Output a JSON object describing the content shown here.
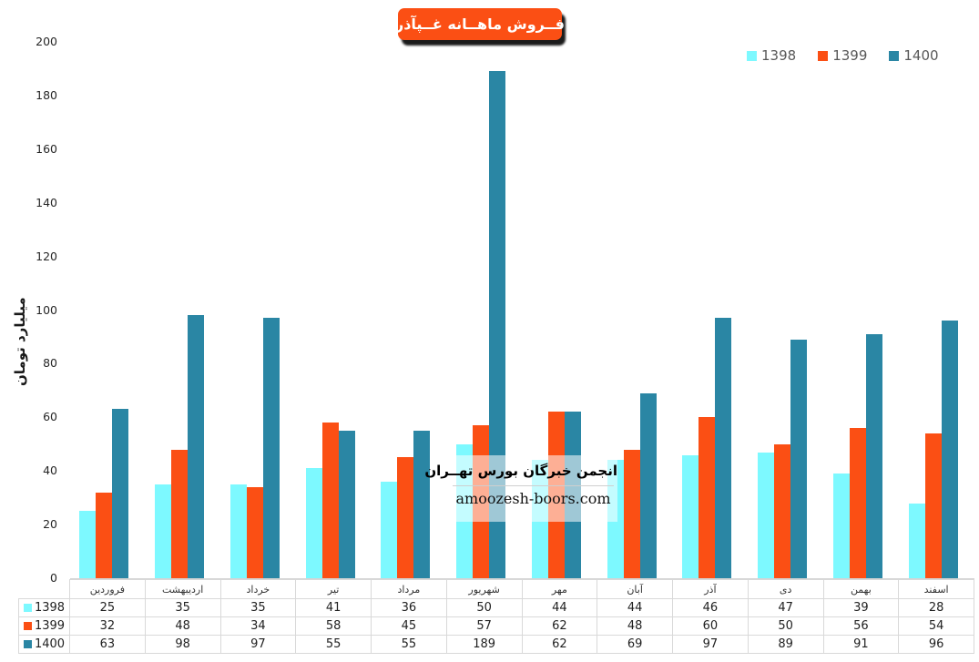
{
  "title": {
    "text": "فــروش ماهــانه غــپآذر",
    "bg_color": "#FB4F14",
    "text_color": "#FFFFFF"
  },
  "axis": {
    "y_label": "میلیارد تومان",
    "y_ticks": [
      0,
      20,
      40,
      60,
      80,
      100,
      120,
      140,
      160,
      180,
      200
    ],
    "y_max": 200
  },
  "chart_data": {
    "type": "bar",
    "title": "فــروش ماهــانه غــپآذر",
    "categories": [
      "فروردین",
      "اردیبهشت",
      "خرداد",
      "تیر",
      "مرداد",
      "شهریور",
      "مهر",
      "آبان",
      "آذر",
      "دی",
      "بهمن",
      "اسفند"
    ],
    "series": [
      {
        "name": "1398",
        "color": "#7DF9FF",
        "values": [
          25,
          35,
          35,
          41,
          36,
          50,
          44,
          44,
          46,
          47,
          39,
          28
        ]
      },
      {
        "name": "1399",
        "color": "#FB4F14",
        "values": [
          32,
          48,
          34,
          58,
          45,
          57,
          62,
          48,
          60,
          50,
          56,
          54
        ]
      },
      {
        "name": "1400",
        "color": "#2A86A4",
        "values": [
          63,
          98,
          97,
          55,
          55,
          189,
          62,
          69,
          97,
          89,
          91,
          96
        ]
      }
    ],
    "xlabel": "",
    "ylabel": "میلیارد تومان",
    "ylim": [
      0,
      200
    ],
    "grid": false,
    "legend_position": "top-right",
    "data_table_shown": true
  },
  "watermark": {
    "title": "انجمن خبرگان بورس تهــران",
    "url": "amoozesh-boors.com"
  },
  "colors": {
    "table_border": "#D9D9D9",
    "legend_text": "#595959",
    "tick_text": "#262626"
  }
}
